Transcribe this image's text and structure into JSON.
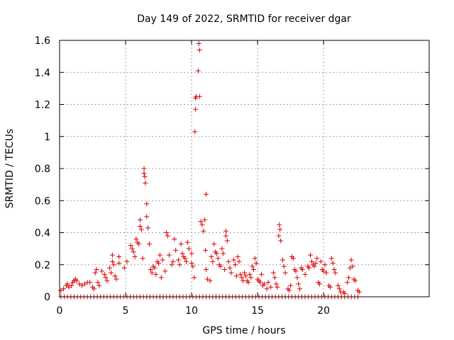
{
  "chart_data": {
    "type": "scatter",
    "title": "Day 149 of 2022, SRMTID for receiver dgar",
    "xlabel": "GPS time / hours",
    "ylabel": "SRMTID / TECUs",
    "xlim": [
      0,
      28
    ],
    "ylim": [
      0,
      1.6
    ],
    "xticks": [
      0,
      5,
      10,
      15,
      20
    ],
    "xtick_labels": [
      "0",
      "5",
      "10",
      "15",
      "20"
    ],
    "yticks": [
      0,
      0.2,
      0.4,
      0.6,
      0.8,
      1.0,
      1.2,
      1.4,
      1.6
    ],
    "ytick_labels": [
      "0",
      "0.2",
      "0.4",
      "0.6",
      "0.8",
      "1",
      "1.2",
      "1.4",
      "1.6"
    ],
    "grid": true,
    "marker": "plus",
    "color": "#dd0000",
    "series": [
      {
        "name": "SRMTID",
        "points": [
          [
            0.1,
            0.04
          ],
          [
            0.3,
            0.05
          ],
          [
            0.5,
            0.07
          ],
          [
            0.6,
            0.08
          ],
          [
            0.7,
            0.06
          ],
          [
            0.9,
            0.07
          ],
          [
            1.0,
            0.09
          ],
          [
            1.1,
            0.1
          ],
          [
            1.2,
            0.11
          ],
          [
            1.3,
            0.1
          ],
          [
            1.5,
            0.08
          ],
          [
            1.7,
            0.07
          ],
          [
            1.9,
            0.08
          ],
          [
            2.1,
            0.09
          ],
          [
            2.3,
            0.09
          ],
          [
            2.5,
            0.06
          ],
          [
            2.6,
            0.05
          ],
          [
            2.7,
            0.15
          ],
          [
            2.8,
            0.17
          ],
          [
            2.9,
            0.09
          ],
          [
            3.0,
            0.07
          ],
          [
            3.2,
            0.16
          ],
          [
            3.4,
            0.14
          ],
          [
            3.5,
            0.12
          ],
          [
            3.6,
            0.1
          ],
          [
            3.8,
            0.18
          ],
          [
            3.9,
            0.15
          ],
          [
            4.0,
            0.26
          ],
          [
            4.0,
            0.22
          ],
          [
            4.1,
            0.2
          ],
          [
            4.2,
            0.13
          ],
          [
            4.3,
            0.11
          ],
          [
            4.5,
            0.25
          ],
          [
            4.5,
            0.21
          ],
          [
            4.9,
            0.18
          ],
          [
            5.1,
            0.22
          ],
          [
            5.4,
            0.32
          ],
          [
            5.5,
            0.3
          ],
          [
            5.6,
            0.28
          ],
          [
            5.7,
            0.25
          ],
          [
            5.8,
            0.36
          ],
          [
            5.9,
            0.34
          ],
          [
            6.0,
            0.33
          ],
          [
            6.1,
            0.48
          ],
          [
            6.1,
            0.44
          ],
          [
            6.2,
            0.42
          ],
          [
            6.3,
            0.24
          ],
          [
            6.4,
            0.8
          ],
          [
            6.4,
            0.77
          ],
          [
            6.45,
            0.75
          ],
          [
            6.5,
            0.71
          ],
          [
            6.6,
            0.58
          ],
          [
            6.6,
            0.5
          ],
          [
            6.7,
            0.43
          ],
          [
            6.8,
            0.33
          ],
          [
            6.9,
            0.17
          ],
          [
            7.0,
            0.15
          ],
          [
            7.1,
            0.19
          ],
          [
            7.2,
            0.18
          ],
          [
            7.3,
            0.14
          ],
          [
            7.4,
            0.22
          ],
          [
            7.5,
            0.21
          ],
          [
            7.6,
            0.26
          ],
          [
            7.7,
            0.12
          ],
          [
            7.8,
            0.23
          ],
          [
            8.0,
            0.16
          ],
          [
            8.1,
            0.4
          ],
          [
            8.2,
            0.38
          ],
          [
            8.3,
            0.26
          ],
          [
            8.5,
            0.2
          ],
          [
            8.6,
            0.22
          ],
          [
            8.7,
            0.36
          ],
          [
            8.8,
            0.29
          ],
          [
            9.0,
            0.23
          ],
          [
            9.1,
            0.2
          ],
          [
            9.2,
            0.33
          ],
          [
            9.3,
            0.27
          ],
          [
            9.4,
            0.25
          ],
          [
            9.5,
            0.24
          ],
          [
            9.6,
            0.22
          ],
          [
            9.7,
            0.34
          ],
          [
            9.8,
            0.3
          ],
          [
            10.0,
            0.27
          ],
          [
            10.0,
            0.21
          ],
          [
            10.1,
            0.19
          ],
          [
            10.2,
            0.12
          ],
          [
            10.25,
            1.03
          ],
          [
            10.3,
            1.17
          ],
          [
            10.3,
            1.24
          ],
          [
            10.35,
            1.25
          ],
          [
            10.5,
            1.41
          ],
          [
            10.55,
            1.58
          ],
          [
            10.6,
            1.54
          ],
          [
            10.6,
            1.25
          ],
          [
            10.7,
            0.47
          ],
          [
            10.8,
            0.45
          ],
          [
            10.9,
            0.41
          ],
          [
            11.0,
            0.48
          ],
          [
            11.05,
            0.29
          ],
          [
            11.1,
            0.17
          ],
          [
            11.1,
            0.64
          ],
          [
            11.2,
            0.11
          ],
          [
            11.4,
            0.1
          ],
          [
            11.5,
            0.25
          ],
          [
            11.6,
            0.22
          ],
          [
            11.7,
            0.33
          ],
          [
            11.8,
            0.28
          ],
          [
            11.9,
            0.27
          ],
          [
            12.0,
            0.24
          ],
          [
            12.1,
            0.2
          ],
          [
            12.2,
            0.19
          ],
          [
            12.3,
            0.3
          ],
          [
            12.4,
            0.27
          ],
          [
            12.5,
            0.17
          ],
          [
            12.6,
            0.38
          ],
          [
            12.6,
            0.41
          ],
          [
            12.7,
            0.35
          ],
          [
            12.8,
            0.22
          ],
          [
            12.9,
            0.18
          ],
          [
            13.0,
            0.15
          ],
          [
            13.2,
            0.23
          ],
          [
            13.3,
            0.2
          ],
          [
            13.4,
            0.13
          ],
          [
            13.5,
            0.25
          ],
          [
            13.6,
            0.22
          ],
          [
            13.7,
            0.14
          ],
          [
            13.8,
            0.12
          ],
          [
            13.9,
            0.1
          ],
          [
            14.0,
            0.15
          ],
          [
            14.1,
            0.13
          ],
          [
            14.2,
            0.1
          ],
          [
            14.3,
            0.09
          ],
          [
            14.4,
            0.14
          ],
          [
            14.5,
            0.12
          ],
          [
            14.6,
            0.19
          ],
          [
            14.7,
            0.17
          ],
          [
            14.8,
            0.24
          ],
          [
            14.9,
            0.21
          ],
          [
            15.0,
            0.11
          ],
          [
            15.1,
            0.1
          ],
          [
            15.2,
            0.09
          ],
          [
            15.3,
            0.14
          ],
          [
            15.4,
            0.07
          ],
          [
            15.5,
            0.08
          ],
          [
            15.7,
            0.05
          ],
          [
            15.8,
            0.09
          ],
          [
            16.0,
            0.06
          ],
          [
            16.2,
            0.15
          ],
          [
            16.3,
            0.12
          ],
          [
            16.4,
            0.08
          ],
          [
            16.5,
            0.06
          ],
          [
            16.6,
            0.38
          ],
          [
            16.65,
            0.45
          ],
          [
            16.7,
            0.42
          ],
          [
            16.75,
            0.35
          ],
          [
            16.9,
            0.23
          ],
          [
            17.0,
            0.19
          ],
          [
            17.1,
            0.15
          ],
          [
            17.3,
            0.05
          ],
          [
            17.4,
            0.04
          ],
          [
            17.5,
            0.07
          ],
          [
            17.6,
            0.25
          ],
          [
            17.7,
            0.24
          ],
          [
            17.8,
            0.17
          ],
          [
            17.9,
            0.16
          ],
          [
            18.0,
            0.12
          ],
          [
            18.1,
            0.08
          ],
          [
            18.2,
            0.05
          ],
          [
            18.3,
            0.18
          ],
          [
            18.4,
            0.17
          ],
          [
            18.6,
            0.14
          ],
          [
            18.8,
            0.19
          ],
          [
            18.9,
            0.18
          ],
          [
            19.0,
            0.26
          ],
          [
            19.1,
            0.22
          ],
          [
            19.2,
            0.2
          ],
          [
            19.3,
            0.19
          ],
          [
            19.4,
            0.21
          ],
          [
            19.5,
            0.24
          ],
          [
            19.6,
            0.09
          ],
          [
            19.7,
            0.08
          ],
          [
            19.8,
            0.22
          ],
          [
            19.9,
            0.17
          ],
          [
            20.0,
            0.16
          ],
          [
            20.1,
            0.2
          ],
          [
            20.2,
            0.15
          ],
          [
            20.4,
            0.07
          ],
          [
            20.5,
            0.06
          ],
          [
            20.6,
            0.24
          ],
          [
            20.7,
            0.21
          ],
          [
            20.8,
            0.17
          ],
          [
            20.9,
            0.15
          ],
          [
            21.1,
            0.07
          ],
          [
            21.2,
            0.05
          ],
          [
            21.3,
            0.03
          ],
          [
            21.5,
            0.03
          ],
          [
            21.6,
            0.02
          ],
          [
            21.8,
            0.09
          ],
          [
            21.9,
            0.12
          ],
          [
            22.0,
            0.18
          ],
          [
            22.1,
            0.23
          ],
          [
            22.2,
            0.19
          ],
          [
            22.3,
            0.11
          ],
          [
            22.4,
            0.1
          ],
          [
            22.6,
            0.04
          ],
          [
            22.7,
            0.03
          ]
        ]
      }
    ],
    "baseline": {
      "name": "zero-values",
      "y": 0,
      "x_start": 0.1,
      "x_end": 22.8,
      "step": 0.25
    }
  }
}
